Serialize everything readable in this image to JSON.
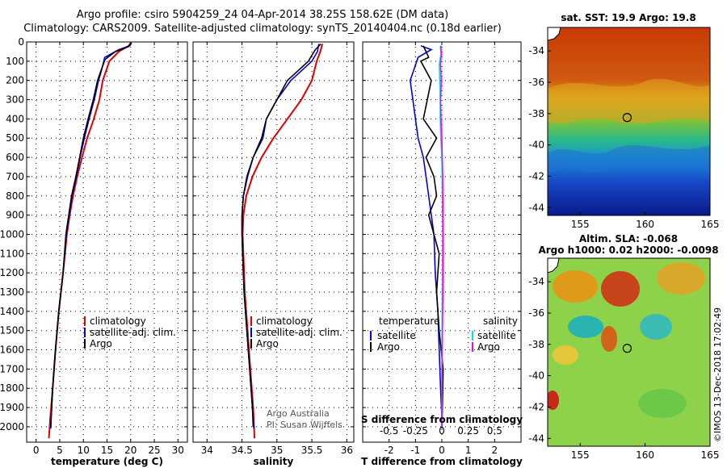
{
  "title_line1": "Argo profile: csiro 5904259_24 04-Apr-2014 38.25S 158.62E (DM data)",
  "title_line2": "Climatology: CARS2009. Satellite-adjusted climatology: synTS_20140404.nc (0.18d earlier)",
  "credit_text": "Argo Australia",
  "pi_text": "PI: Susan Wijffels",
  "imos_text": "©IMOS 13-Dec-2018 17:02:49",
  "colors": {
    "climatology": "#e00000",
    "satellite": "#0000e0",
    "argo": "#000000",
    "sat_salinity": "#00e0e0",
    "argo_salinity": "#ff00ff"
  },
  "chart_data": [
    {
      "type": "line",
      "id": "temperature",
      "xlabel": "temperature (deg C)",
      "xlim": [
        -2,
        32
      ],
      "xticks": [
        0,
        5,
        10,
        15,
        20,
        25,
        30
      ],
      "ylim": [
        0,
        2080
      ],
      "yticks": [
        0,
        100,
        200,
        300,
        400,
        500,
        600,
        700,
        800,
        900,
        1000,
        1100,
        1200,
        1300,
        1400,
        1500,
        1600,
        1700,
        1800,
        1900,
        2000
      ],
      "legend": [
        "climatology",
        "satellite-adj. clim.",
        "Argo"
      ],
      "series": [
        {
          "name": "climatology",
          "color": "climatology",
          "points": [
            [
              20,
              5
            ],
            [
              19.6,
              20
            ],
            [
              17.5,
              50
            ],
            [
              15.5,
              100
            ],
            [
              14.8,
              150
            ],
            [
              14.1,
              200
            ],
            [
              13.4,
              300
            ],
            [
              12.2,
              400
            ],
            [
              10.8,
              500
            ],
            [
              9.7,
              600
            ],
            [
              8.7,
              700
            ],
            [
              7.8,
              800
            ],
            [
              7.1,
              900
            ],
            [
              6.5,
              1000
            ],
            [
              5.7,
              1200
            ],
            [
              4.8,
              1400
            ],
            [
              4.1,
              1600
            ],
            [
              3.5,
              1800
            ],
            [
              3.0,
              1950
            ],
            [
              2.7,
              2060
            ]
          ]
        },
        {
          "name": "satellite-adj. clim.",
          "color": "satellite",
          "points": [
            [
              20.2,
              5
            ],
            [
              19.8,
              20
            ],
            [
              17.5,
              40
            ],
            [
              14.5,
              80
            ],
            [
              13.8,
              150
            ],
            [
              13.2,
              200
            ],
            [
              12.3,
              300
            ],
            [
              11.2,
              400
            ],
            [
              10.2,
              500
            ],
            [
              9.3,
              600
            ],
            [
              8.5,
              700
            ],
            [
              7.6,
              800
            ],
            [
              7.0,
              900
            ],
            [
              6.4,
              1000
            ],
            [
              5.7,
              1200
            ],
            [
              4.8,
              1400
            ],
            [
              4.1,
              1600
            ],
            [
              3.5,
              1800
            ],
            [
              3.2,
              1950
            ],
            [
              3.1,
              2010
            ]
          ]
        },
        {
          "name": "Argo",
          "color": "argo",
          "points": [
            [
              20.1,
              5
            ],
            [
              19.5,
              25
            ],
            [
              16.8,
              50
            ],
            [
              14.6,
              90
            ],
            [
              13.7,
              150
            ],
            [
              13.0,
              200
            ],
            [
              12.1,
              300
            ],
            [
              11.0,
              400
            ],
            [
              10.0,
              500
            ],
            [
              9.2,
              600
            ],
            [
              8.4,
              700
            ],
            [
              7.5,
              800
            ],
            [
              6.9,
              900
            ],
            [
              6.3,
              1000
            ],
            [
              5.7,
              1200
            ],
            [
              4.8,
              1400
            ],
            [
              4.1,
              1600
            ],
            [
              3.5,
              1800
            ],
            [
              3.2,
              1950
            ],
            [
              3.1,
              2000
            ]
          ]
        }
      ]
    },
    {
      "type": "line",
      "id": "salinity",
      "xlabel": "salinity",
      "xlim": [
        33.8,
        36.1
      ],
      "xticks": [
        34,
        34.5,
        35,
        35.5,
        36
      ],
      "xtick_labels": [
        "34",
        "34.5",
        "35",
        "35.5",
        "36"
      ],
      "ylim": [
        0,
        2080
      ],
      "yticks": [
        0,
        100,
        200,
        300,
        400,
        500,
        600,
        700,
        800,
        900,
        1000,
        1100,
        1200,
        1300,
        1400,
        1500,
        1600,
        1700,
        1800,
        1900,
        2000
      ],
      "legend": [
        "climatology",
        "satellite-adj. clim.",
        "Argo"
      ],
      "series": [
        {
          "name": "climatology",
          "color": "climatology",
          "points": [
            [
              35.65,
              10
            ],
            [
              35.62,
              50
            ],
            [
              35.57,
              100
            ],
            [
              35.5,
              200
            ],
            [
              35.35,
              300
            ],
            [
              35.15,
              400
            ],
            [
              34.95,
              500
            ],
            [
              34.78,
              600
            ],
            [
              34.65,
              700
            ],
            [
              34.56,
              800
            ],
            [
              34.52,
              900
            ],
            [
              34.51,
              1000
            ],
            [
              34.52,
              1100
            ],
            [
              34.54,
              1300
            ],
            [
              34.58,
              1500
            ],
            [
              34.62,
              1700
            ],
            [
              34.66,
              1900
            ],
            [
              34.68,
              2060
            ]
          ]
        },
        {
          "name": "satellite-adj. clim.",
          "color": "satellite",
          "points": [
            [
              35.6,
              10
            ],
            [
              35.58,
              50
            ],
            [
              35.5,
              100
            ],
            [
              35.35,
              150
            ],
            [
              35.2,
              200
            ],
            [
              35.0,
              300
            ],
            [
              34.85,
              400
            ],
            [
              34.8,
              500
            ],
            [
              34.66,
              600
            ],
            [
              34.58,
              700
            ],
            [
              34.52,
              800
            ],
            [
              34.5,
              900
            ],
            [
              34.5,
              1000
            ],
            [
              34.51,
              1100
            ],
            [
              34.53,
              1300
            ],
            [
              34.57,
              1500
            ],
            [
              34.61,
              1700
            ],
            [
              34.65,
              1900
            ],
            [
              34.67,
              2010
            ]
          ]
        },
        {
          "name": "Argo",
          "color": "argo",
          "points": [
            [
              35.63,
              10
            ],
            [
              35.55,
              40
            ],
            [
              35.45,
              100
            ],
            [
              35.3,
              150
            ],
            [
              35.15,
              200
            ],
            [
              35.0,
              300
            ],
            [
              34.85,
              400
            ],
            [
              34.78,
              500
            ],
            [
              34.66,
              600
            ],
            [
              34.57,
              700
            ],
            [
              34.52,
              800
            ],
            [
              34.5,
              900
            ],
            [
              34.5,
              1000
            ],
            [
              34.51,
              1100
            ],
            [
              34.53,
              1300
            ],
            [
              34.57,
              1500
            ],
            [
              34.61,
              1700
            ],
            [
              34.65,
              1900
            ],
            [
              34.66,
              2000
            ]
          ]
        }
      ]
    },
    {
      "type": "line",
      "id": "difference",
      "xlabel": "T difference from climatology",
      "xlim": [
        -3,
        3
      ],
      "xticks": [
        -2,
        -1,
        0,
        1,
        2
      ],
      "xtick_labels": [
        "-2",
        "-1",
        "0",
        "1",
        "2"
      ],
      "top_xlabel": "S difference from climatology",
      "top_xticks": [
        -0.5,
        -0.25,
        0,
        0.25,
        0.5
      ],
      "top_xtick_labels": [
        "-0.5",
        "-0.25",
        "0",
        "0.25",
        "0.5"
      ],
      "top_xlim": [
        -0.75,
        0.75
      ],
      "ylim": [
        0,
        2080
      ],
      "yticks": [
        0,
        100,
        200,
        300,
        400,
        500,
        600,
        700,
        800,
        900,
        1000,
        1100,
        1200,
        1300,
        1400,
        1500,
        1600,
        1700,
        1800,
        1900,
        2000
      ],
      "legend_temperature_title": "temperature",
      "legend_salinity_title": "salinity",
      "legend_temperature": [
        "satellite",
        "Argo"
      ],
      "legend_salinity": [
        "satellite",
        "Argo"
      ],
      "series": [
        {
          "name": "T satellite",
          "color": "satellite",
          "points": [
            [
              -0.8,
              20
            ],
            [
              -0.4,
              40
            ],
            [
              -0.9,
              80
            ],
            [
              -1.2,
              200
            ],
            [
              -1.1,
              300
            ],
            [
              -1.0,
              400
            ],
            [
              -0.9,
              500
            ],
            [
              -0.7,
              600
            ],
            [
              -0.6,
              700
            ],
            [
              -0.5,
              800
            ],
            [
              -0.4,
              900
            ],
            [
              -0.3,
              1000
            ],
            [
              -0.25,
              1200
            ],
            [
              -0.15,
              1400
            ],
            [
              -0.1,
              1600
            ],
            [
              -0.05,
              1800
            ],
            [
              0,
              1950
            ],
            [
              0,
              2010
            ]
          ]
        },
        {
          "name": "T Argo",
          "color": "argo",
          "points": [
            [
              -0.7,
              20
            ],
            [
              -0.6,
              50
            ],
            [
              -0.5,
              80
            ],
            [
              -0.8,
              100
            ],
            [
              -0.4,
              200
            ],
            [
              -0.7,
              400
            ],
            [
              -0.2,
              500
            ],
            [
              -0.6,
              600
            ],
            [
              -0.3,
              700
            ],
            [
              -0.2,
              800
            ],
            [
              -0.5,
              900
            ],
            [
              -0.3,
              1000
            ],
            [
              -0.1,
              1100
            ],
            [
              -0.2,
              1300
            ],
            [
              -0.1,
              1500
            ],
            [
              0.05,
              1700
            ],
            [
              0.02,
              1900
            ],
            [
              0,
              2000
            ]
          ]
        },
        {
          "name": "S satellite",
          "color": "sat_salinity",
          "points": [
            [
              -0.06,
              20
            ],
            [
              -0.03,
              60
            ],
            [
              -0.1,
              120
            ],
            [
              -0.08,
              200
            ],
            [
              -0.06,
              300
            ],
            [
              -0.06,
              400
            ],
            [
              -0.04,
              500
            ],
            [
              0,
              600
            ],
            [
              0.02,
              800
            ],
            [
              0.03,
              1000
            ],
            [
              0.02,
              1200
            ],
            [
              0.01,
              1500
            ],
            [
              0,
              1800
            ],
            [
              0,
              2010
            ]
          ]
        },
        {
          "name": "S Argo",
          "color": "argo_salinity",
          "points": [
            [
              -0.04,
              20
            ],
            [
              -0.02,
              60
            ],
            [
              -0.05,
              120
            ],
            [
              -0.02,
              200
            ],
            [
              -0.05,
              300
            ],
            [
              -0.03,
              400
            ],
            [
              0,
              500
            ],
            [
              0.03,
              700
            ],
            [
              0.04,
              900
            ],
            [
              0.05,
              1100
            ],
            [
              0.04,
              1300
            ],
            [
              0.02,
              1500
            ],
            [
              0.01,
              1700
            ],
            [
              0.01,
              1900
            ],
            [
              0,
              2000
            ]
          ]
        }
      ]
    },
    {
      "type": "heatmap",
      "id": "sst_map",
      "title": "sat. SST: 19.9 Argo: 19.8",
      "xlim": [
        152.5,
        165
      ],
      "ylim": [
        -44.5,
        -32.5
      ],
      "xticks": [
        155,
        160,
        165
      ],
      "yticks": [
        -34,
        -36,
        -38,
        -40,
        -42,
        -44
      ],
      "marker": [
        158.62,
        -38.25
      ]
    },
    {
      "type": "heatmap",
      "id": "sla_map",
      "title": "Altim. SLA: -0.068",
      "subtitle": "Argo h1000: 0.02 h2000: -0.0098",
      "xlim": [
        152.5,
        165
      ],
      "ylim": [
        -44.5,
        -32.5
      ],
      "xticks": [
        155,
        160,
        165
      ],
      "yticks": [
        -34,
        -36,
        -38,
        -40,
        -42,
        -44
      ],
      "marker": [
        158.62,
        -38.25
      ]
    }
  ]
}
